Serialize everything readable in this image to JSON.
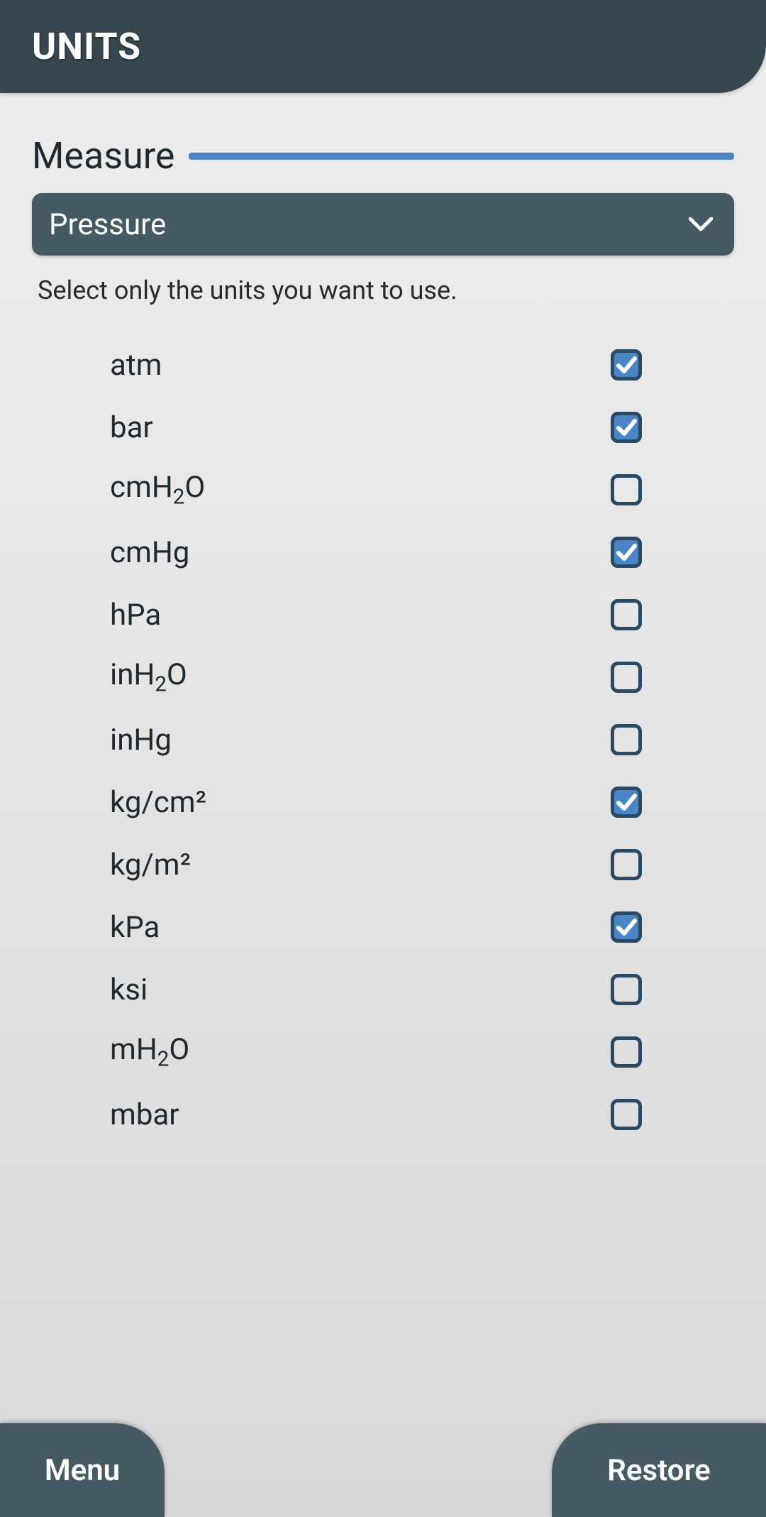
{
  "header": {
    "title": "UNITS"
  },
  "measure": {
    "label": "Measure",
    "accent_color": "#4a86c5"
  },
  "dropdown": {
    "selected": "Pressure"
  },
  "instruction": "Select only the units you want to use.",
  "checkbox": {
    "border_color": "#2a4a63",
    "checked_bg": "#4a86c5",
    "check_color": "#ffffff"
  },
  "units": [
    {
      "label_html": "atm",
      "checked": true
    },
    {
      "label_html": "bar",
      "checked": true
    },
    {
      "label_html": "cmH<sub>2</sub>O",
      "checked": false
    },
    {
      "label_html": "cmHg",
      "checked": true
    },
    {
      "label_html": "hPa",
      "checked": false
    },
    {
      "label_html": "inH<sub>2</sub>O",
      "checked": false
    },
    {
      "label_html": "inHg",
      "checked": false
    },
    {
      "label_html": "kg/cm²",
      "checked": true
    },
    {
      "label_html": "kg/m²",
      "checked": false
    },
    {
      "label_html": "kPa",
      "checked": true
    },
    {
      "label_html": "ksi",
      "checked": false
    },
    {
      "label_html": "mH<sub>2</sub>O",
      "checked": false
    },
    {
      "label_html": "mbar",
      "checked": false
    }
  ],
  "bottom": {
    "menu": "Menu",
    "restore": "Restore"
  },
  "colors": {
    "header_bg": "#36474f",
    "dropdown_bg": "#465a64",
    "body_text": "#1e2a30"
  }
}
